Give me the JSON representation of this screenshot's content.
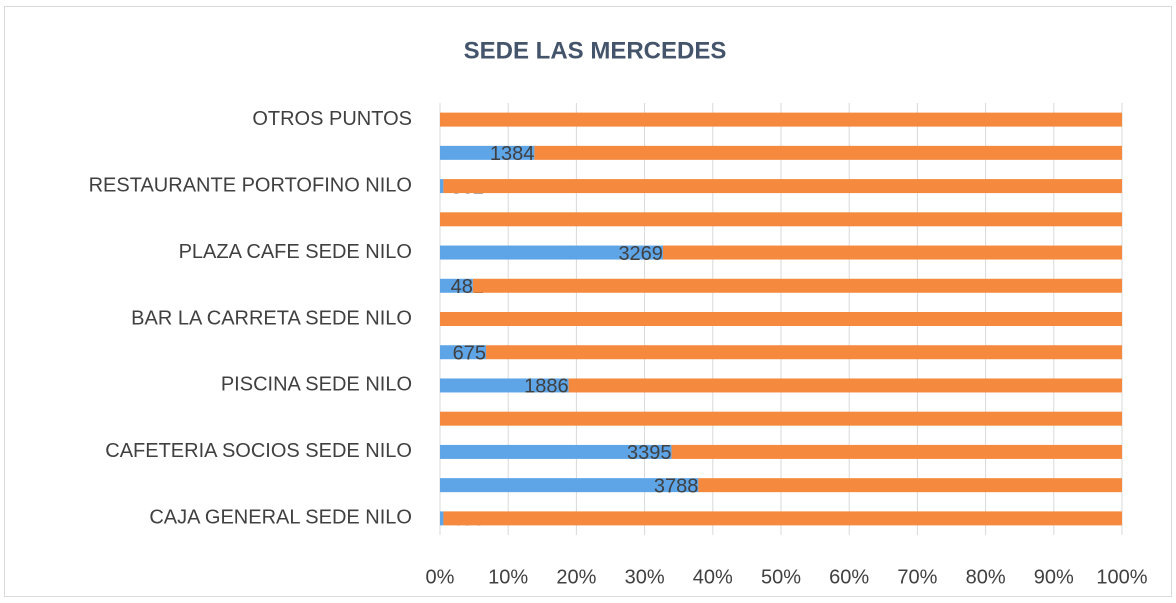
{
  "chart_data": {
    "type": "stacked_percent_barh",
    "title": "SEDE LAS MERCEDES",
    "categories": [
      "CAJA GENERAL SEDE NILO",
      null,
      "CAFETERIA SOCIOS SEDE NILO",
      null,
      "PISCINA SEDE NILO",
      null,
      "BAR LA CARRETA SEDE NILO",
      null,
      "PLAZA CAFE SEDE NILO",
      null,
      "RESTAURANTE PORTOFINO NILO",
      null,
      "OTROS PUNTOS"
    ],
    "series": [
      {
        "color": "#5ea5e8",
        "values": [
          456,
          3788,
          3395,
          null,
          1886,
          675,
          null,
          482,
          3269,
          null,
          362,
          1384,
          null
        ]
      },
      {
        "color": "#f58a3e",
        "values": [
          90000,
          6212,
          6605,
          10000,
          8114,
          9325,
          10000,
          9518,
          6731,
          10000,
          72000,
          8616,
          10000
        ]
      }
    ],
    "xlim": [
      0,
      100
    ],
    "xticks": [
      {
        "value": 0,
        "label": "0%"
      },
      {
        "value": 10,
        "label": "10%"
      },
      {
        "value": 20,
        "label": "20%"
      },
      {
        "value": 30,
        "label": "30%"
      },
      {
        "value": 40,
        "label": "40%"
      },
      {
        "value": 50,
        "label": "50%"
      },
      {
        "value": 60,
        "label": "60%"
      },
      {
        "value": 70,
        "label": "70%"
      },
      {
        "value": 80,
        "label": "80%"
      },
      {
        "value": 90,
        "label": "90%"
      },
      {
        "value": 100,
        "label": "100%"
      }
    ],
    "grid": true
  }
}
